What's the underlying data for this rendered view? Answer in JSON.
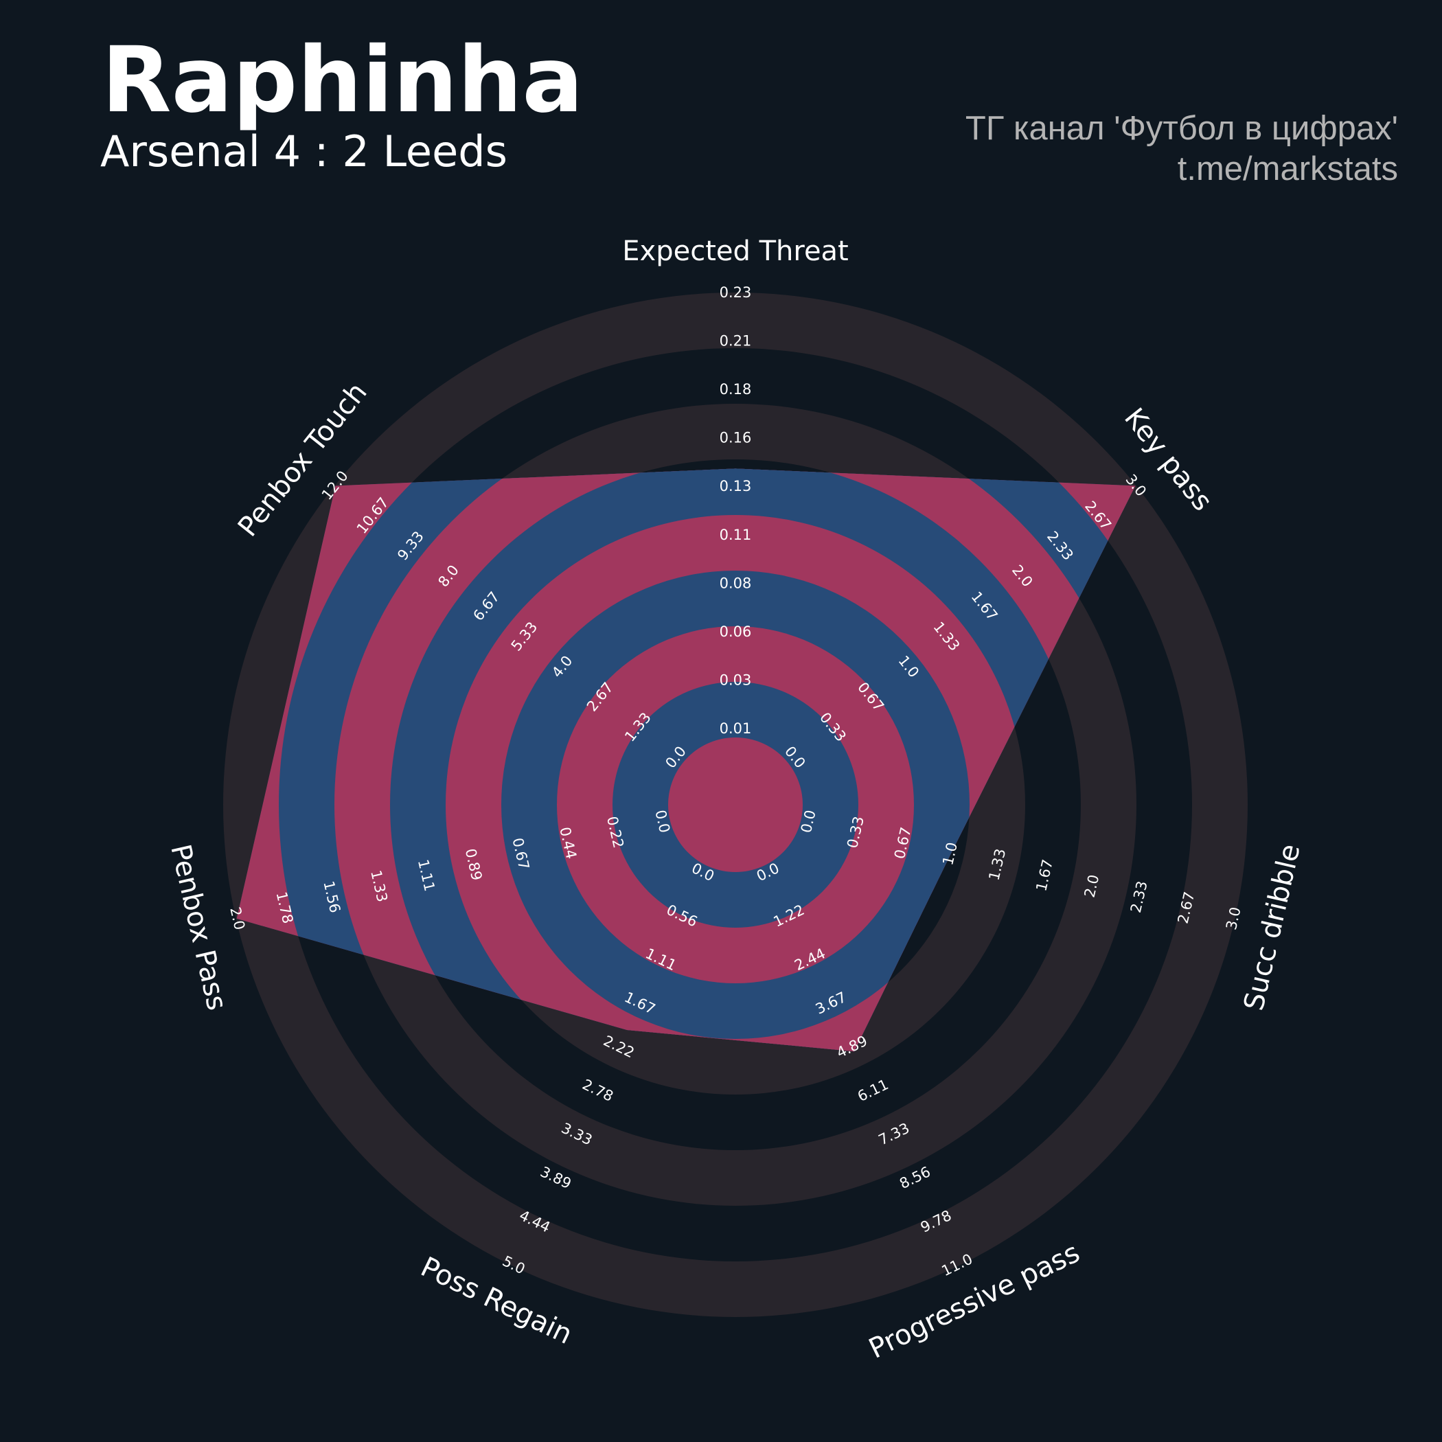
{
  "chart_data": {
    "type": "radar",
    "title": "Raphinha",
    "subtitle": "Arsenal 4 : 2 Leeds",
    "annotations": [
      "ТГ канал 'Футбол в цифрах'",
      "t.me/markstats"
    ],
    "categories": [
      "Expected Threat",
      "Key pass",
      "Succ dribble",
      "Progressive pass",
      "Poss Regain",
      "Penbox Pass",
      "Penbox Touch"
    ],
    "values": [
      0.14,
      3,
      1,
      5,
      2,
      2,
      12
    ],
    "color": "#274b78",
    "overlap_color": "#a1375e",
    "ring_color": "#28252c",
    "axes": [
      {
        "lim": [
          0.0055,
          0.2305
        ],
        "ticks": [
          {
            "value": 0.0055,
            "label": "0.01"
          },
          {
            "value": 0.0305,
            "label": "0.03"
          },
          {
            "value": 0.0555,
            "label": "0.06"
          },
          {
            "value": 0.0805,
            "label": "0.08"
          },
          {
            "value": 0.1055,
            "label": "0.11"
          },
          {
            "value": 0.1305,
            "label": "0.13"
          },
          {
            "value": 0.1555,
            "label": "0.16"
          },
          {
            "value": 0.1805,
            "label": "0.18"
          },
          {
            "value": 0.2055,
            "label": "0.21"
          },
          {
            "value": 0.2305,
            "label": "0.23"
          }
        ]
      },
      {
        "lim": [
          0,
          3
        ],
        "ticks": [
          {
            "value": 0,
            "label": "0.0"
          },
          {
            "value": 0.3333,
            "label": "0.33"
          },
          {
            "value": 0.6667,
            "label": "0.67"
          },
          {
            "value": 1,
            "label": "1.0"
          },
          {
            "value": 1.3333,
            "label": "1.33"
          },
          {
            "value": 1.6667,
            "label": "1.67"
          },
          {
            "value": 2,
            "label": "2.0"
          },
          {
            "value": 2.3333,
            "label": "2.33"
          },
          {
            "value": 2.6667,
            "label": "2.67"
          },
          {
            "value": 3,
            "label": "3.0"
          }
        ]
      },
      {
        "lim": [
          0,
          3
        ],
        "ticks": [
          {
            "value": 0,
            "label": "0.0"
          },
          {
            "value": 0.3333,
            "label": "0.33"
          },
          {
            "value": 0.6667,
            "label": "0.67"
          },
          {
            "value": 1,
            "label": "1.0"
          },
          {
            "value": 1.3333,
            "label": "1.33"
          },
          {
            "value": 1.6667,
            "label": "1.67"
          },
          {
            "value": 2,
            "label": "2.0"
          },
          {
            "value": 2.3333,
            "label": "2.33"
          },
          {
            "value": 2.6667,
            "label": "2.67"
          },
          {
            "value": 3,
            "label": "3.0"
          }
        ]
      },
      {
        "lim": [
          0,
          11
        ],
        "ticks": [
          {
            "value": 0,
            "label": "0.0"
          },
          {
            "value": 1.2222,
            "label": "1.22"
          },
          {
            "value": 2.4444,
            "label": "2.44"
          },
          {
            "value": 3.6667,
            "label": "3.67"
          },
          {
            "value": 4.8889,
            "label": "4.89"
          },
          {
            "value": 6.1111,
            "label": "6.11"
          },
          {
            "value": 7.3333,
            "label": "7.33"
          },
          {
            "value": 8.5556,
            "label": "8.56"
          },
          {
            "value": 9.7778,
            "label": "9.78"
          },
          {
            "value": 11,
            "label": "11.0"
          }
        ]
      },
      {
        "lim": [
          0,
          5
        ],
        "ticks": [
          {
            "value": 0,
            "label": "0.0"
          },
          {
            "value": 0.5556,
            "label": "0.56"
          },
          {
            "value": 1.1111,
            "label": "1.11"
          },
          {
            "value": 1.6667,
            "label": "1.67"
          },
          {
            "value": 2.2222,
            "label": "2.22"
          },
          {
            "value": 2.7778,
            "label": "2.78"
          },
          {
            "value": 3.3333,
            "label": "3.33"
          },
          {
            "value": 3.8889,
            "label": "3.89"
          },
          {
            "value": 4.4444,
            "label": "4.44"
          },
          {
            "value": 5,
            "label": "5.0"
          }
        ]
      },
      {
        "lim": [
          0,
          2
        ],
        "ticks": [
          {
            "value": 0,
            "label": "0.0"
          },
          {
            "value": 0.2222,
            "label": "0.22"
          },
          {
            "value": 0.4444,
            "label": "0.44"
          },
          {
            "value": 0.6667,
            "label": "0.67"
          },
          {
            "value": 0.8889,
            "label": "0.89"
          },
          {
            "value": 1.1111,
            "label": "1.11"
          },
          {
            "value": 1.3333,
            "label": "1.33"
          },
          {
            "value": 1.5556,
            "label": "1.56"
          },
          {
            "value": 1.7778,
            "label": "1.78"
          },
          {
            "value": 2,
            "label": "2.0"
          }
        ]
      },
      {
        "lim": [
          0,
          12
        ],
        "ticks": [
          {
            "value": 0,
            "label": "0.0"
          },
          {
            "value": 1.3333,
            "label": "1.33"
          },
          {
            "value": 2.6667,
            "label": "2.67"
          },
          {
            "value": 4,
            "label": "4.0"
          },
          {
            "value": 5.3333,
            "label": "5.33"
          },
          {
            "value": 6.6667,
            "label": "6.67"
          },
          {
            "value": 8,
            "label": "8.0"
          },
          {
            "value": 9.3333,
            "label": "9.33"
          },
          {
            "value": 10.6667,
            "label": "10.67"
          },
          {
            "value": 12,
            "label": "12.0"
          }
        ]
      }
    ]
  }
}
